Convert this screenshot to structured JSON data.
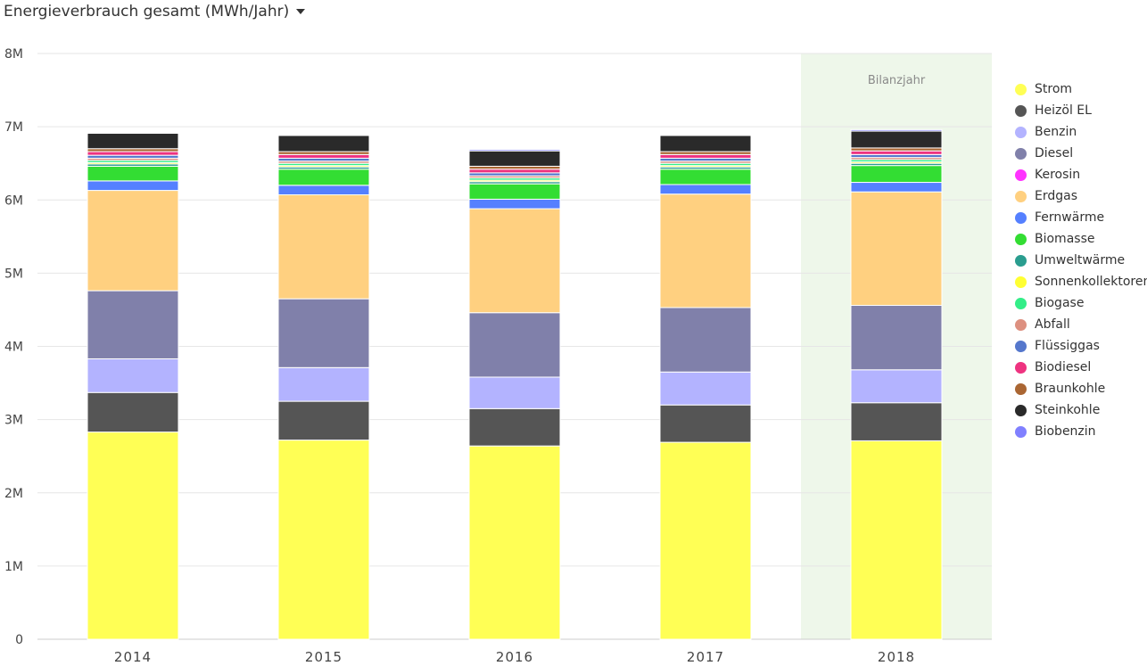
{
  "header": {
    "title": "Energieverbrauch gesamt (MWh/Jahr)",
    "dropdown_icon": "caret-down-icon"
  },
  "highlight_label": "Bilanzjahr",
  "chart_data": {
    "type": "bar",
    "stacked": true,
    "title": "Energieverbrauch gesamt (MWh/Jahr)",
    "categories": [
      "2014",
      "2015",
      "2016",
      "2017",
      "2018"
    ],
    "highlight_category": "2018",
    "ylim": [
      0,
      8000000
    ],
    "yticks": [
      0,
      1000000,
      2000000,
      3000000,
      4000000,
      5000000,
      6000000,
      7000000,
      8000000
    ],
    "ytick_labels": [
      "0",
      "1M",
      "2M",
      "3M",
      "4M",
      "5M",
      "6M",
      "7M",
      "8M"
    ],
    "grid": true,
    "legend_position": "right",
    "series": [
      {
        "name": "Strom",
        "color": "#ffff55",
        "values": [
          2830000,
          2720000,
          2640000,
          2690000,
          2710000
        ]
      },
      {
        "name": "Heizöl EL",
        "color": "#555555",
        "values": [
          540000,
          530000,
          510000,
          510000,
          520000
        ]
      },
      {
        "name": "Benzin",
        "color": "#b3b3ff",
        "values": [
          460000,
          460000,
          430000,
          450000,
          450000
        ]
      },
      {
        "name": "Diesel",
        "color": "#8080aa",
        "values": [
          930000,
          940000,
          880000,
          880000,
          880000
        ]
      },
      {
        "name": "Kerosin",
        "color": "#ff33ff",
        "values": [
          0,
          0,
          0,
          0,
          0
        ]
      },
      {
        "name": "Erdgas",
        "color": "#ffd080",
        "values": [
          1370000,
          1420000,
          1420000,
          1550000,
          1550000
        ]
      },
      {
        "name": "Fernwärme",
        "color": "#5580ff",
        "values": [
          130000,
          130000,
          130000,
          130000,
          130000
        ]
      },
      {
        "name": "Biomasse",
        "color": "#33dd33",
        "values": [
          200000,
          220000,
          210000,
          210000,
          230000
        ]
      },
      {
        "name": "Umweltwärme",
        "color": "#2a9d8f",
        "values": [
          30000,
          30000,
          30000,
          30000,
          30000
        ]
      },
      {
        "name": "Sonnenkollektoren",
        "color": "#ffff33",
        "values": [
          20000,
          20000,
          20000,
          20000,
          20000
        ]
      },
      {
        "name": "Biogase",
        "color": "#33ee88",
        "values": [
          30000,
          30000,
          30000,
          30000,
          30000
        ]
      },
      {
        "name": "Abfall",
        "color": "#dd9080",
        "values": [
          30000,
          30000,
          30000,
          30000,
          30000
        ]
      },
      {
        "name": "Flüssiggas",
        "color": "#5577cc",
        "values": [
          40000,
          40000,
          40000,
          40000,
          40000
        ]
      },
      {
        "name": "Biodiesel",
        "color": "#ee3380",
        "values": [
          50000,
          50000,
          50000,
          50000,
          50000
        ]
      },
      {
        "name": "Braunkohle",
        "color": "#aa6633",
        "values": [
          40000,
          40000,
          40000,
          40000,
          40000
        ]
      },
      {
        "name": "Steinkohle",
        "color": "#2a2a2a",
        "values": [
          210000,
          220000,
          210000,
          220000,
          230000
        ]
      },
      {
        "name": "Biobenzin",
        "color": "#8080ff",
        "values": [
          0,
          0,
          20000,
          0,
          20000
        ]
      }
    ]
  }
}
